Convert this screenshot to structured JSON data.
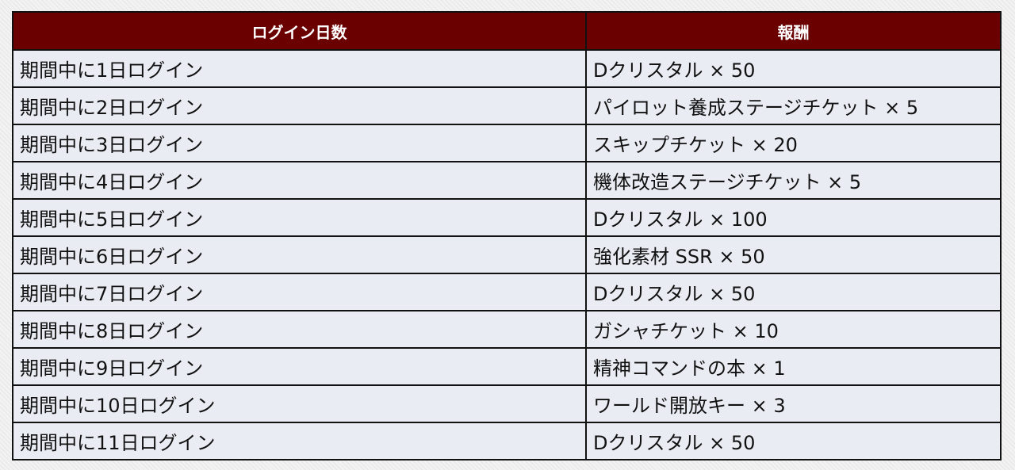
{
  "table": {
    "headers": [
      "ログイン日数",
      "報酬"
    ],
    "rows": [
      [
        "期間中に1日ログイン",
        "Dクリスタル × 50"
      ],
      [
        "期間中に2日ログイン",
        "パイロット養成ステージチケット × 5"
      ],
      [
        "期間中に3日ログイン",
        "スキップチケット × 20"
      ],
      [
        "期間中に4日ログイン",
        "機体改造ステージチケット × 5"
      ],
      [
        "期間中に5日ログイン",
        "Dクリスタル × 100"
      ],
      [
        "期間中に6日ログイン",
        "強化素材 SSR × 50"
      ],
      [
        "期間中に7日ログイン",
        "Dクリスタル × 50"
      ],
      [
        "期間中に8日ログイン",
        "ガシャチケット × 10"
      ],
      [
        "期間中に9日ログイン",
        "精神コマンドの本 × 1"
      ],
      [
        "期間中に10日ログイン",
        "ワールド開放キー × 3"
      ],
      [
        "期間中に11日ログイン",
        "Dクリスタル × 50"
      ]
    ]
  }
}
